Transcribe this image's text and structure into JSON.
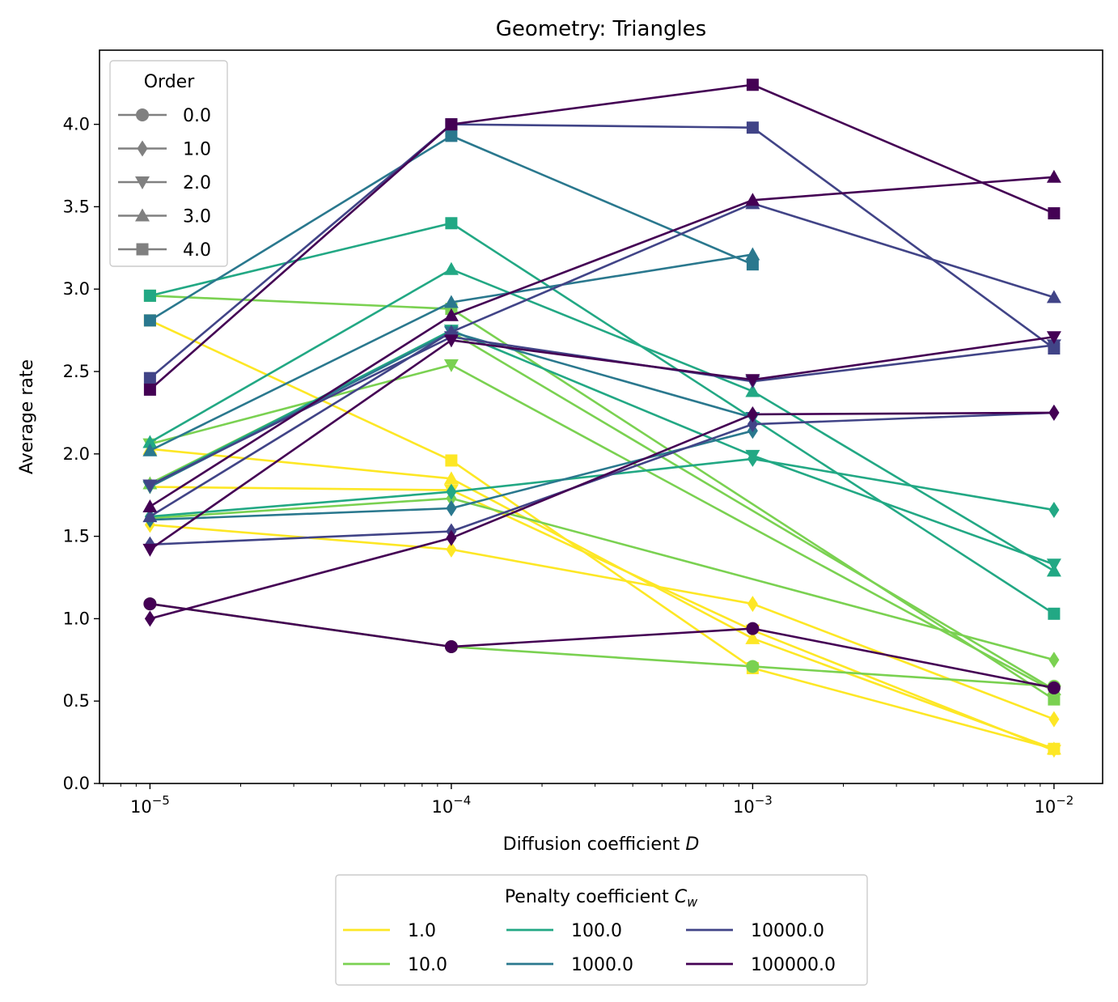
{
  "chart_data": {
    "type": "line",
    "title": "Geometry: Triangles",
    "xlabel": "Diffusion coefficient D",
    "xlabel_parts": {
      "text": "Diffusion coefficient ",
      "var": "D"
    },
    "ylabel": "Average rate",
    "x_scale": "log",
    "x": [
      1e-05,
      0.0001,
      0.001,
      0.01
    ],
    "x_tick_labels": [
      {
        "base": "10",
        "exp": "−5"
      },
      {
        "base": "10",
        "exp": "−4"
      },
      {
        "base": "10",
        "exp": "−3"
      },
      {
        "base": "10",
        "exp": "−2"
      }
    ],
    "xlim": [
      6.8e-06,
      0.0145
    ],
    "ylim": [
      0.0,
      4.45
    ],
    "y_ticks": [
      "0.0",
      "0.5",
      "1.0",
      "1.5",
      "2.0",
      "2.5",
      "3.0",
      "3.5",
      "4.0"
    ],
    "grid": false,
    "legend_order": {
      "title": "Order",
      "placement": "top-left",
      "entries": [
        {
          "label": "0.0",
          "marker": "circle"
        },
        {
          "label": "1.0",
          "marker": "diamond"
        },
        {
          "label": "2.0",
          "marker": "triangle-down"
        },
        {
          "label": "3.0",
          "marker": "triangle-up"
        },
        {
          "label": "4.0",
          "marker": "square"
        }
      ],
      "color": "#808080"
    },
    "legend_penalty": {
      "title": "Penalty coefficient C_w",
      "title_parts": {
        "text": "Penalty coefficient ",
        "var": "C",
        "sub": "w"
      },
      "placement": "below",
      "entries": [
        {
          "label": "1.0",
          "color": "#fde725"
        },
        {
          "label": "10.0",
          "color": "#7ad151"
        },
        {
          "label": "100.0",
          "color": "#22a884"
        },
        {
          "label": "1000.0",
          "color": "#2a788e"
        },
        {
          "label": "10000.0",
          "color": "#414487"
        },
        {
          "label": "100000.0",
          "color": "#440154"
        }
      ]
    },
    "series": [
      {
        "penalty": "1.0",
        "order": "0.0",
        "color": "#fde725",
        "marker": "circle",
        "values": [
          null,
          null,
          null,
          null
        ]
      },
      {
        "penalty": "1.0",
        "order": "1.0",
        "color": "#fde725",
        "marker": "diamond",
        "values": [
          1.57,
          1.42,
          1.09,
          0.39
        ]
      },
      {
        "penalty": "1.0",
        "order": "2.0",
        "color": "#fde725",
        "marker": "triangle-down",
        "values": [
          1.8,
          1.78,
          0.93,
          0.2
        ]
      },
      {
        "penalty": "1.0",
        "order": "3.0",
        "color": "#fde725",
        "marker": "triangle-up",
        "values": [
          2.03,
          1.85,
          0.88,
          0.21
        ]
      },
      {
        "penalty": "1.0",
        "order": "4.0",
        "color": "#fde725",
        "marker": "square",
        "values": [
          2.81,
          1.96,
          0.7,
          0.21
        ]
      },
      {
        "penalty": "10.0",
        "order": "0.0",
        "color": "#7ad151",
        "marker": "circle",
        "values": [
          1.09,
          0.83,
          0.71,
          0.59
        ]
      },
      {
        "penalty": "10.0",
        "order": "1.0",
        "color": "#7ad151",
        "marker": "diamond",
        "values": [
          1.61,
          1.73,
          null,
          0.75
        ]
      },
      {
        "penalty": "10.0",
        "order": "2.0",
        "color": "#7ad151",
        "marker": "triangle-down",
        "values": [
          2.06,
          2.54,
          null,
          0.56
        ]
      },
      {
        "penalty": "10.0",
        "order": "3.0",
        "color": "#7ad151",
        "marker": "triangle-up",
        "values": [
          1.82,
          2.74,
          null,
          0.57
        ]
      },
      {
        "penalty": "10.0",
        "order": "4.0",
        "color": "#7ad151",
        "marker": "square",
        "values": [
          2.96,
          2.88,
          null,
          0.51
        ]
      },
      {
        "penalty": "100.0",
        "order": "1.0",
        "color": "#22a884",
        "marker": "diamond",
        "values": [
          1.62,
          1.77,
          1.97,
          1.66
        ]
      },
      {
        "penalty": "100.0",
        "order": "2.0",
        "color": "#22a884",
        "marker": "triangle-down",
        "values": [
          1.81,
          2.75,
          1.99,
          1.33
        ]
      },
      {
        "penalty": "100.0",
        "order": "3.0",
        "color": "#22a884",
        "marker": "triangle-up",
        "values": [
          2.07,
          3.12,
          2.38,
          1.29
        ]
      },
      {
        "penalty": "100.0",
        "order": "4.0",
        "color": "#22a884",
        "marker": "square",
        "values": [
          2.96,
          3.4,
          null,
          1.03
        ]
      },
      {
        "penalty": "1000.0",
        "order": "1.0",
        "color": "#2a788e",
        "marker": "diamond",
        "values": [
          1.6,
          1.67,
          2.14,
          null
        ]
      },
      {
        "penalty": "1000.0",
        "order": "2.0",
        "color": "#2a788e",
        "marker": "triangle-down",
        "values": [
          1.8,
          2.74,
          2.22,
          null
        ]
      },
      {
        "penalty": "1000.0",
        "order": "3.0",
        "color": "#2a788e",
        "marker": "triangle-up",
        "values": [
          2.02,
          2.92,
          3.21,
          null
        ]
      },
      {
        "penalty": "1000.0",
        "order": "4.0",
        "color": "#2a788e",
        "marker": "square",
        "values": [
          2.81,
          3.93,
          3.15,
          null
        ]
      },
      {
        "penalty": "10000.0",
        "order": "1.0",
        "color": "#414487",
        "marker": "diamond",
        "values": [
          1.45,
          1.53,
          2.18,
          2.25
        ]
      },
      {
        "penalty": "10000.0",
        "order": "2.0",
        "color": "#414487",
        "marker": "triangle-down",
        "values": [
          1.81,
          2.71,
          2.44,
          2.66
        ]
      },
      {
        "penalty": "10000.0",
        "order": "3.0",
        "color": "#414487",
        "marker": "triangle-up",
        "values": [
          1.62,
          2.74,
          3.52,
          2.95
        ]
      },
      {
        "penalty": "10000.0",
        "order": "4.0",
        "color": "#414487",
        "marker": "square",
        "values": [
          2.46,
          4.0,
          3.98,
          2.64
        ]
      },
      {
        "penalty": "100000.0",
        "order": "0.0",
        "color": "#440154",
        "marker": "circle",
        "values": [
          1.09,
          0.83,
          0.94,
          0.58
        ]
      },
      {
        "penalty": "100000.0",
        "order": "1.0",
        "color": "#440154",
        "marker": "diamond",
        "values": [
          1.0,
          1.49,
          2.24,
          2.25
        ]
      },
      {
        "penalty": "100000.0",
        "order": "2.0",
        "color": "#440154",
        "marker": "triangle-down",
        "values": [
          1.42,
          2.69,
          2.45,
          2.71
        ]
      },
      {
        "penalty": "100000.0",
        "order": "3.0",
        "color": "#440154",
        "marker": "triangle-up",
        "values": [
          1.68,
          2.84,
          3.54,
          3.68
        ]
      },
      {
        "penalty": "100000.0",
        "order": "4.0",
        "color": "#440154",
        "marker": "square",
        "values": [
          2.39,
          4.0,
          4.24,
          3.46
        ]
      }
    ]
  }
}
